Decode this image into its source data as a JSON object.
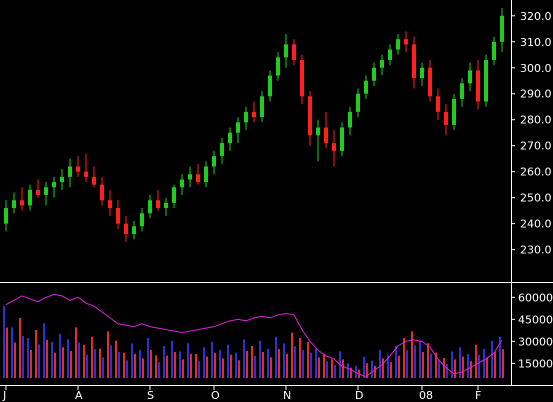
{
  "chart_data": [
    {
      "type": "candlestick",
      "title": "",
      "y_ticks": [
        "320.0",
        "310.0",
        "300.0",
        "290.0",
        "280.0",
        "270.0",
        "260.0",
        "250.0",
        "240.0",
        "230.0"
      ],
      "ylim": [
        226,
        323
      ],
      "up_color": "#22cc22",
      "down_color": "#ff2020",
      "ohlc": [
        [
          240,
          249,
          237,
          246
        ],
        [
          246,
          252,
          244,
          249
        ],
        [
          249,
          254,
          245,
          247
        ],
        [
          247,
          255,
          245,
          253
        ],
        [
          253,
          257,
          250,
          251
        ],
        [
          251,
          256,
          247,
          254
        ],
        [
          254,
          258,
          250,
          256
        ],
        [
          256,
          261,
          253,
          258
        ],
        [
          258,
          265,
          254,
          262
        ],
        [
          262,
          266,
          258,
          260
        ],
        [
          260,
          267,
          256,
          258
        ],
        [
          258,
          262,
          254,
          255
        ],
        [
          255,
          258,
          247,
          249
        ],
        [
          249,
          253,
          243,
          246
        ],
        [
          246,
          249,
          238,
          240
        ],
        [
          240,
          243,
          233,
          236
        ],
        [
          236,
          241,
          234,
          239
        ],
        [
          239,
          246,
          237,
          244
        ],
        [
          244,
          251,
          242,
          249
        ],
        [
          249,
          253,
          245,
          246
        ],
        [
          246,
          250,
          243,
          248
        ],
        [
          248,
          255,
          246,
          254
        ],
        [
          254,
          259,
          251,
          257
        ],
        [
          257,
          262,
          254,
          259
        ],
        [
          259,
          263,
          255,
          256
        ],
        [
          256,
          264,
          254,
          262
        ],
        [
          262,
          268,
          259,
          266
        ],
        [
          266,
          273,
          263,
          271
        ],
        [
          271,
          277,
          268,
          275
        ],
        [
          275,
          281,
          271,
          279
        ],
        [
          279,
          285,
          276,
          283
        ],
        [
          283,
          287,
          279,
          281
        ],
        [
          281,
          291,
          279,
          289
        ],
        [
          289,
          299,
          287,
          297
        ],
        [
          297,
          306,
          295,
          304
        ],
        [
          304,
          313,
          300,
          309
        ],
        [
          309,
          311,
          301,
          303
        ],
        [
          303,
          305,
          286,
          289
        ],
        [
          289,
          291,
          270,
          274
        ],
        [
          274,
          280,
          264,
          277
        ],
        [
          277,
          283,
          269,
          271
        ],
        [
          271,
          276,
          262,
          268
        ],
        [
          268,
          279,
          266,
          277
        ],
        [
          277,
          285,
          274,
          283
        ],
        [
          283,
          292,
          281,
          290
        ],
        [
          290,
          297,
          288,
          295
        ],
        [
          295,
          302,
          293,
          300
        ],
        [
          300,
          305,
          297,
          303
        ],
        [
          303,
          309,
          301,
          307
        ],
        [
          307,
          313,
          305,
          311
        ],
        [
          311,
          314,
          306,
          309
        ],
        [
          309,
          312,
          292,
          296
        ],
        [
          296,
          302,
          293,
          300
        ],
        [
          300,
          303,
          287,
          289
        ],
        [
          289,
          292,
          280,
          283
        ],
        [
          283,
          286,
          274,
          278
        ],
        [
          278,
          290,
          276,
          288
        ],
        [
          288,
          296,
          285,
          294
        ],
        [
          294,
          302,
          291,
          299
        ],
        [
          299,
          303,
          284,
          287
        ],
        [
          287,
          305,
          285,
          303
        ],
        [
          303,
          312,
          301,
          310
        ],
        [
          310,
          323,
          306,
          320
        ]
      ],
      "indicator_ticks": [
        "60000",
        "45000",
        "30000",
        "15000"
      ],
      "indicator_range": [
        5000,
        65000
      ],
      "volume_max": 66000,
      "volumes": [
        54000,
        38000,
        45000,
        30000,
        36000,
        41000,
        27000,
        33000,
        29000,
        38000,
        25000,
        31000,
        22000,
        35000,
        28000,
        19000,
        26000,
        21000,
        30000,
        17000,
        24000,
        28000,
        20000,
        26000,
        18000,
        23000,
        27000,
        21000,
        25000,
        19000,
        29000,
        24000,
        28000,
        22000,
        31000,
        26000,
        34000,
        30000,
        27000,
        22000,
        18000,
        14000,
        20000,
        11000,
        9000,
        16000,
        13000,
        21000,
        17000,
        24000,
        30000,
        35000,
        28000,
        26000,
        19000,
        15000,
        20000,
        23000,
        18000,
        25000,
        22000,
        28000,
        31000
      ],
      "indicator_color": "#e020e0",
      "indicator_values": [
        55000,
        58000,
        61000,
        59000,
        57000,
        60000,
        62000,
        61000,
        58000,
        60000,
        56000,
        54000,
        50000,
        46000,
        42000,
        41000,
        40000,
        42000,
        40000,
        39000,
        38000,
        37000,
        36000,
        37000,
        38000,
        39000,
        40000,
        42000,
        44000,
        45000,
        44000,
        46000,
        47000,
        46000,
        48000,
        49000,
        48000,
        38000,
        30000,
        24000,
        20000,
        18000,
        13000,
        11000,
        8000,
        6000,
        10000,
        14000,
        20000,
        27000,
        30000,
        31000,
        30000,
        26000,
        18000,
        12000,
        8000,
        9000,
        12000,
        15000,
        18000,
        22000,
        31000
      ],
      "x_tick_labels": [
        "J",
        "A",
        "S",
        "O",
        "N",
        "D",
        "08",
        "F"
      ],
      "x_tick_positions": [
        0,
        9,
        18,
        26,
        35,
        44,
        52,
        59
      ]
    }
  ]
}
